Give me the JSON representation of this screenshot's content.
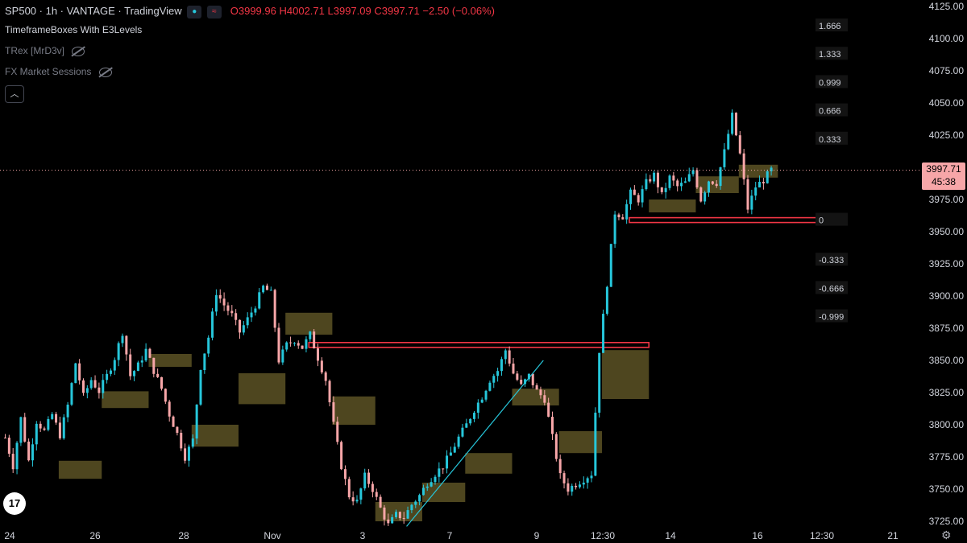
{
  "legend": {
    "title": "SP500 · 1h · VANTAGE · TradingView",
    "ohlc_o": "O3999.96",
    "ohlc_h": "H4002.71",
    "ohlc_l": "L3997.09",
    "ohlc_c": "C3997.71",
    "change": "−2.50 (−0.06%)",
    "indicators": [
      {
        "label": "TimeframeBoxes With E3Levels"
      },
      {
        "label": "TRex [MrD3v]"
      },
      {
        "label": "FX Market Sessions"
      }
    ]
  },
  "price_box": {
    "price": "3997.71",
    "countdown": "45:38"
  },
  "logo_text": "17",
  "icons": {
    "eye": "eye-hidden-icon",
    "collapse": "chevron-up-icon",
    "settings": "gear-icon"
  },
  "colors": {
    "up": "#26c6da",
    "down": "#f7a6a8",
    "box": "#5c5224",
    "level_line": "#f23645"
  },
  "chart_data": {
    "type": "candlestick",
    "title": "SP500 · 1h · VANTAGE · TradingView",
    "y_axis": {
      "ticks": [
        "4125.00",
        "4100.00",
        "4075.00",
        "4050.00",
        "4025.00",
        "4000.00",
        "3975.00",
        "3950.00",
        "3925.00",
        "3900.00",
        "3875.00",
        "3850.00",
        "3825.00",
        "3800.00",
        "3775.00",
        "3750.00",
        "3725.00"
      ],
      "ylim": [
        3715,
        4130
      ]
    },
    "x_axis": {
      "ticks": [
        "24",
        "26",
        "28",
        "Nov",
        "3",
        "7",
        "9",
        "12:30",
        "14",
        "16",
        "12:30",
        "21"
      ]
    },
    "level_labels": [
      "1.666",
      "1.333",
      "0.999",
      "0.666",
      "0.333",
      "0",
      "-0.333",
      "-0.666",
      "-0.999"
    ],
    "anchor_points": [
      [
        0,
        3790
      ],
      [
        2,
        3768
      ],
      [
        4,
        3805
      ],
      [
        6,
        3772
      ],
      [
        8,
        3803
      ],
      [
        10,
        3795
      ],
      [
        12,
        3808
      ],
      [
        14,
        3792
      ],
      [
        16,
        3815
      ],
      [
        18,
        3848
      ],
      [
        20,
        3822
      ],
      [
        22,
        3835
      ],
      [
        24,
        3826
      ],
      [
        26,
        3838
      ],
      [
        28,
        3852
      ],
      [
        30,
        3872
      ],
      [
        32,
        3838
      ],
      [
        34,
        3846
      ],
      [
        36,
        3858
      ],
      [
        38,
        3842
      ],
      [
        40,
        3828
      ],
      [
        42,
        3808
      ],
      [
        44,
        3793
      ],
      [
        46,
        3775
      ],
      [
        48,
        3788
      ],
      [
        50,
        3845
      ],
      [
        52,
        3868
      ],
      [
        54,
        3903
      ],
      [
        56,
        3893
      ],
      [
        58,
        3885
      ],
      [
        60,
        3872
      ],
      [
        62,
        3882
      ],
      [
        64,
        3893
      ],
      [
        66,
        3907
      ],
      [
        68,
        3902
      ],
      [
        70,
        3850
      ],
      [
        72,
        3862
      ],
      [
        74,
        3866
      ],
      [
        76,
        3860
      ],
      [
        78,
        3870
      ],
      [
        80,
        3852
      ],
      [
        82,
        3835
      ],
      [
        84,
        3800
      ],
      [
        86,
        3768
      ],
      [
        88,
        3745
      ],
      [
        90,
        3740
      ],
      [
        92,
        3760
      ],
      [
        94,
        3750
      ],
      [
        96,
        3735
      ],
      [
        98,
        3722
      ],
      [
        100,
        3730
      ],
      [
        102,
        3728
      ],
      [
        104,
        3738
      ],
      [
        106,
        3745
      ],
      [
        108,
        3755
      ],
      [
        110,
        3762
      ],
      [
        112,
        3768
      ],
      [
        114,
        3778
      ],
      [
        116,
        3790
      ],
      [
        118,
        3800
      ],
      [
        120,
        3812
      ],
      [
        122,
        3822
      ],
      [
        124,
        3835
      ],
      [
        126,
        3842
      ],
      [
        128,
        3858
      ],
      [
        130,
        3840
      ],
      [
        132,
        3830
      ],
      [
        134,
        3838
      ],
      [
        136,
        3826
      ],
      [
        138,
        3820
      ],
      [
        140,
        3790
      ],
      [
        142,
        3760
      ],
      [
        144,
        3750
      ],
      [
        146,
        3754
      ],
      [
        148,
        3758
      ],
      [
        150,
        3762
      ],
      [
        152,
        3858
      ],
      [
        154,
        3910
      ],
      [
        156,
        3965
      ],
      [
        158,
        3962
      ],
      [
        160,
        3980
      ],
      [
        162,
        3975
      ],
      [
        164,
        3988
      ],
      [
        166,
        3994
      ],
      [
        168,
        3978
      ],
      [
        170,
        3992
      ],
      [
        172,
        3985
      ],
      [
        174,
        3988
      ],
      [
        176,
        3998
      ],
      [
        178,
        3975
      ],
      [
        180,
        3990
      ],
      [
        182,
        3988
      ],
      [
        184,
        4012
      ],
      [
        186,
        4040
      ],
      [
        188,
        4010
      ],
      [
        190,
        3968
      ],
      [
        192,
        3985
      ],
      [
        194,
        3990
      ],
      [
        196,
        3998
      ]
    ],
    "timeframe_boxes": [
      {
        "bar_start": 14,
        "bar_end": 25,
        "y_low": 3758,
        "y_high": 3772
      },
      {
        "bar_start": 25,
        "bar_end": 37,
        "y_low": 3813,
        "y_high": 3826
      },
      {
        "bar_start": 37,
        "bar_end": 48,
        "y_low": 3845,
        "y_high": 3855
      },
      {
        "bar_start": 48,
        "bar_end": 60,
        "y_low": 3783,
        "y_high": 3800
      },
      {
        "bar_start": 60,
        "bar_end": 72,
        "y_low": 3816,
        "y_high": 3840
      },
      {
        "bar_start": 72,
        "bar_end": 84,
        "y_low": 3870,
        "y_high": 3887
      },
      {
        "bar_start": 84,
        "bar_end": 95,
        "y_low": 3800,
        "y_high": 3822
      },
      {
        "bar_start": 95,
        "bar_end": 107,
        "y_low": 3725,
        "y_high": 3740
      },
      {
        "bar_start": 107,
        "bar_end": 118,
        "y_low": 3740,
        "y_high": 3755
      },
      {
        "bar_start": 118,
        "bar_end": 130,
        "y_low": 3762,
        "y_high": 3778
      },
      {
        "bar_start": 130,
        "bar_end": 142,
        "y_low": 3815,
        "y_high": 3828
      },
      {
        "bar_start": 142,
        "bar_end": 153,
        "y_low": 3778,
        "y_high": 3795
      },
      {
        "bar_start": 153,
        "bar_end": 165,
        "y_low": 3820,
        "y_high": 3858
      },
      {
        "bar_start": 165,
        "bar_end": 177,
        "y_low": 3965,
        "y_high": 3975
      },
      {
        "bar_start": 177,
        "bar_end": 188,
        "y_low": 3980,
        "y_high": 3993
      },
      {
        "bar_start": 188,
        "bar_end": 198,
        "y_low": 3992,
        "y_high": 4002
      }
    ],
    "level_lines": [
      {
        "y": 3862
      },
      {
        "y": 3959
      }
    ],
    "trend_line": {
      "from": [
        103,
        3721
      ],
      "to": [
        138,
        3850
      ]
    },
    "last_price": 3997.71
  }
}
